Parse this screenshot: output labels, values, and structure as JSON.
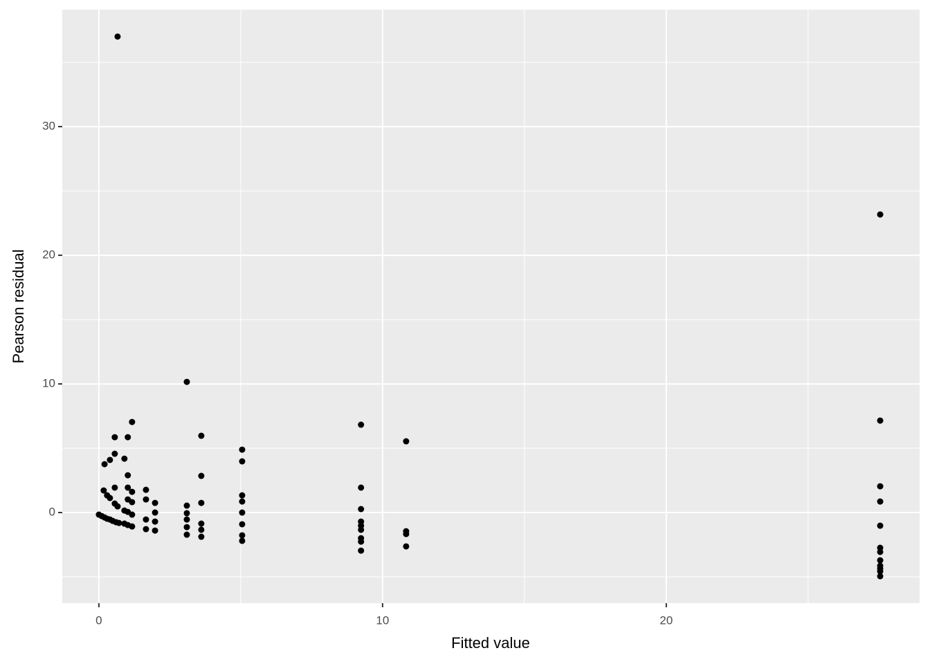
{
  "chart_data": {
    "type": "scatter",
    "xlabel": "Fitted value",
    "ylabel": "Pearson residual",
    "xlim": [
      -1.29,
      28.93
    ],
    "ylim": [
      -7.04,
      39.09
    ],
    "xticks": [
      0,
      10,
      20
    ],
    "yticks": [
      0,
      10,
      20,
      30
    ],
    "x_minor_grid": [
      5,
      15,
      25
    ],
    "y_minor_grid": [
      -5,
      5,
      15,
      25,
      35
    ],
    "grid": true,
    "background": "#ebebeb",
    "grid_color": "#ffffff",
    "series": [
      {
        "color": "#000000",
        "x": [
          0.66,
          27.54,
          3.1,
          1.17,
          0.56,
          1.02,
          3.61,
          5.05,
          5.05,
          9.24,
          10.83,
          27.54,
          0.2,
          0.39,
          0.56,
          0.9,
          1.02,
          3.61,
          0.17,
          0.29,
          0.39,
          0.56,
          0.56,
          0.66,
          1.02,
          1.02,
          1.17,
          1.17,
          0.9,
          1.02,
          1.17,
          1.66,
          1.66,
          1.98,
          1.98,
          1.66,
          1.98,
          1.66,
          1.98,
          3.1,
          3.1,
          3.1,
          3.1,
          3.1,
          3.61,
          3.61,
          3.61,
          3.61,
          5.05,
          5.05,
          5.05,
          5.05,
          5.05,
          5.05,
          0,
          0.1,
          0.2,
          0.29,
          0.39,
          0.49,
          0.61,
          0.71,
          0.9,
          1.02,
          1.17,
          9.24,
          9.24,
          9.24,
          9.24,
          9.24,
          9.24,
          9.24,
          9.24,
          10.83,
          10.83,
          10.83,
          27.54,
          27.54,
          27.54,
          27.54,
          27.54,
          27.54,
          27.54,
          27.54,
          27.54,
          27.54
        ],
        "values": [
          37.0,
          23.17,
          10.16,
          7.04,
          5.86,
          5.86,
          5.97,
          4.89,
          3.98,
          6.83,
          5.54,
          7.15,
          3.76,
          4.09,
          4.57,
          4.19,
          2.9,
          2.85,
          1.72,
          1.34,
          1.13,
          1.94,
          0.7,
          0.48,
          1.94,
          1.02,
          1.61,
          0.81,
          0.16,
          0.05,
          -0.16,
          1.77,
          1.02,
          0.75,
          0,
          -0.54,
          -0.7,
          -1.29,
          -1.4,
          0.54,
          -0.05,
          -0.54,
          -1.13,
          -1.72,
          0.75,
          -0.86,
          -1.34,
          -1.88,
          1.34,
          0.86,
          0,
          -0.91,
          -1.77,
          -2.2,
          -0.16,
          -0.27,
          -0.38,
          -0.48,
          -0.54,
          -0.65,
          -0.75,
          -0.81,
          -0.86,
          -0.97,
          -1.08,
          1.94,
          0.27,
          -0.7,
          -1.02,
          -1.34,
          -1.99,
          -2.26,
          -2.96,
          -1.45,
          -1.67,
          -2.63,
          2.04,
          0.86,
          -1.02,
          -2.74,
          -3.06,
          -3.71,
          -4.14,
          -4.35,
          -4.57,
          -4.95
        ]
      }
    ]
  }
}
